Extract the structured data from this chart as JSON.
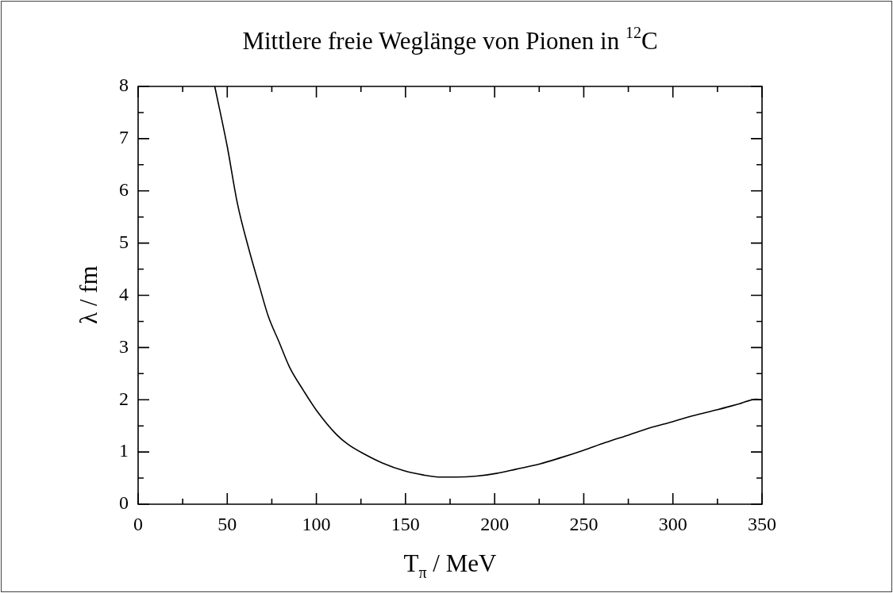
{
  "chart_data": {
    "type": "line",
    "title": "Mittlere freie Weglänge von Pionen in $^{12}$C",
    "xlabel": "T$_{π}$ / MeV",
    "ylabel": "λ / fm",
    "xlim": [
      0,
      350
    ],
    "ylim": [
      0,
      8
    ],
    "xticks": [
      0,
      {
        "value": 25,
        "label": null
      },
      50,
      {
        "value": 75,
        "label": null
      },
      100,
      {
        "value": 125,
        "label": null
      },
      150,
      {
        "value": 175,
        "label": null
      },
      200,
      {
        "value": 225,
        "label": null
      },
      250,
      {
        "value": 275,
        "label": null
      },
      300,
      {
        "value": 325,
        "label": null
      },
      350
    ],
    "yticks": [
      0,
      {
        "value": 0.5,
        "label": null
      },
      1,
      {
        "value": 1.5,
        "label": null
      },
      2,
      {
        "value": 2.5,
        "label": null
      },
      3,
      {
        "value": 3.5,
        "label": null
      },
      4,
      {
        "value": 4.5,
        "label": null
      },
      5,
      {
        "value": 5.5,
        "label": null
      },
      6,
      {
        "value": 6.5,
        "label": null
      },
      7,
      {
        "value": 7.5,
        "label": null
      },
      8
    ],
    "marker": "none",
    "line_style": "solid",
    "series": [
      {
        "color": "#000000",
        "x": [
          43,
          50,
          55.7,
          62,
          68,
          73,
          78.9,
          85,
          92.9,
          100,
          111.4,
          118,
          126.9,
          137,
          149.2,
          160,
          170,
          178.3,
          190,
          201,
          212,
          225.3,
          237,
          249.6,
          262,
          275.5,
          287,
          299.8,
          312,
          325,
          337,
          346.8,
          350
        ],
        "values": [
          8,
          6.85,
          5.76,
          4.9,
          4.18,
          3.6,
          3.12,
          2.62,
          2.17,
          1.8,
          1.33,
          1.14,
          0.96,
          0.79,
          0.64,
          0.56,
          0.52,
          0.52,
          0.54,
          0.59,
          0.67,
          0.77,
          0.89,
          1.03,
          1.18,
          1.33,
          1.46,
          1.58,
          1.7,
          1.81,
          1.92,
          2.01,
          2.0
        ]
      }
    ]
  }
}
